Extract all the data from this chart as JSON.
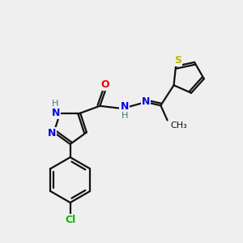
{
  "bg_color": "#efefef",
  "atom_colors": {
    "N": "#0000ee",
    "O": "#ee0000",
    "S": "#bbbb00",
    "Cl": "#00bb00",
    "C": "#111111",
    "H": "#447777"
  },
  "bond_color": "#111111",
  "figsize": [
    3.0,
    3.0
  ],
  "dpi": 100
}
